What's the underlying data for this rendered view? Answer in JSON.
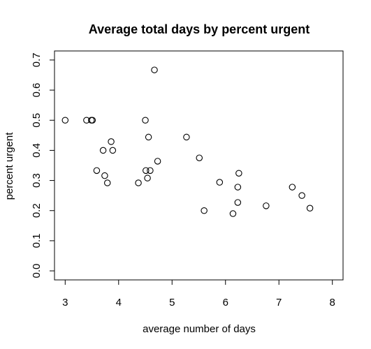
{
  "chart_data": {
    "type": "scatter",
    "title": "Average total days by percent urgent",
    "xlabel": "average number of days",
    "ylabel": "percent urgent",
    "xlim": [
      2.8,
      8.2
    ],
    "ylim": [
      -0.03,
      0.73
    ],
    "x_ticks": [
      3,
      4,
      5,
      6,
      7,
      8
    ],
    "y_ticks": [
      0.0,
      0.1,
      0.2,
      0.3,
      0.4,
      0.5,
      0.6,
      0.7
    ],
    "x_tick_labels": [
      "3",
      "4",
      "5",
      "6",
      "7",
      "8"
    ],
    "y_tick_labels": [
      "0.0",
      "0.1",
      "0.2",
      "0.3",
      "0.4",
      "0.5",
      "0.6",
      "0.7"
    ],
    "grid": false,
    "marker": "open-circle",
    "points": [
      {
        "x": 3.0,
        "y": 0.5
      },
      {
        "x": 3.4,
        "y": 0.5
      },
      {
        "x": 3.49,
        "y": 0.5
      },
      {
        "x": 3.51,
        "y": 0.5
      },
      {
        "x": 3.59,
        "y": 0.333
      },
      {
        "x": 3.71,
        "y": 0.4
      },
      {
        "x": 3.74,
        "y": 0.316
      },
      {
        "x": 3.79,
        "y": 0.292
      },
      {
        "x": 3.86,
        "y": 0.429
      },
      {
        "x": 3.89,
        "y": 0.4
      },
      {
        "x": 4.37,
        "y": 0.292
      },
      {
        "x": 4.5,
        "y": 0.5
      },
      {
        "x": 4.51,
        "y": 0.333
      },
      {
        "x": 4.54,
        "y": 0.308
      },
      {
        "x": 4.56,
        "y": 0.444
      },
      {
        "x": 4.59,
        "y": 0.333
      },
      {
        "x": 4.67,
        "y": 0.667
      },
      {
        "x": 4.73,
        "y": 0.364
      },
      {
        "x": 5.27,
        "y": 0.444
      },
      {
        "x": 5.51,
        "y": 0.375
      },
      {
        "x": 5.6,
        "y": 0.2
      },
      {
        "x": 5.89,
        "y": 0.294
      },
      {
        "x": 6.14,
        "y": 0.19
      },
      {
        "x": 6.23,
        "y": 0.278
      },
      {
        "x": 6.23,
        "y": 0.227
      },
      {
        "x": 6.25,
        "y": 0.324
      },
      {
        "x": 6.76,
        "y": 0.216
      },
      {
        "x": 7.25,
        "y": 0.278
      },
      {
        "x": 7.43,
        "y": 0.25
      },
      {
        "x": 7.58,
        "y": 0.208
      }
    ]
  }
}
